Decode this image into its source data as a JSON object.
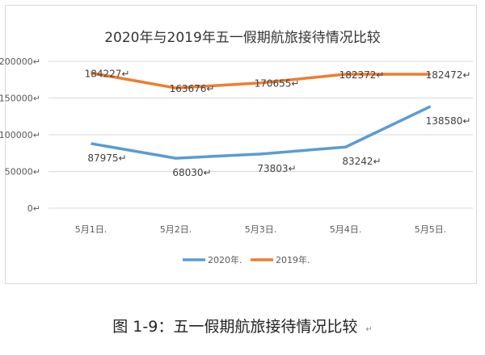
{
  "chart_data": {
    "type": "line",
    "title": "2020年与2019年五一假期航旅接待情况比较",
    "categories": [
      "5月1日",
      "5月2日",
      "5月3日",
      "5月4日",
      "5月5日"
    ],
    "yticks": [
      0,
      50000,
      100000,
      150000,
      200000
    ],
    "ylim": [
      0,
      200000
    ],
    "grid": true,
    "legend_position": "bottom",
    "series": [
      {
        "name": "2020年",
        "color": "#5b9bd5",
        "values": [
          87975,
          68030,
          73803,
          83242,
          138580
        ]
      },
      {
        "name": "2019年",
        "color": "#ed7d31",
        "values": [
          184227,
          163676,
          170655,
          182372,
          182472
        ]
      }
    ]
  },
  "caption": "图 1-9：五一假期航旅接待情况比较"
}
